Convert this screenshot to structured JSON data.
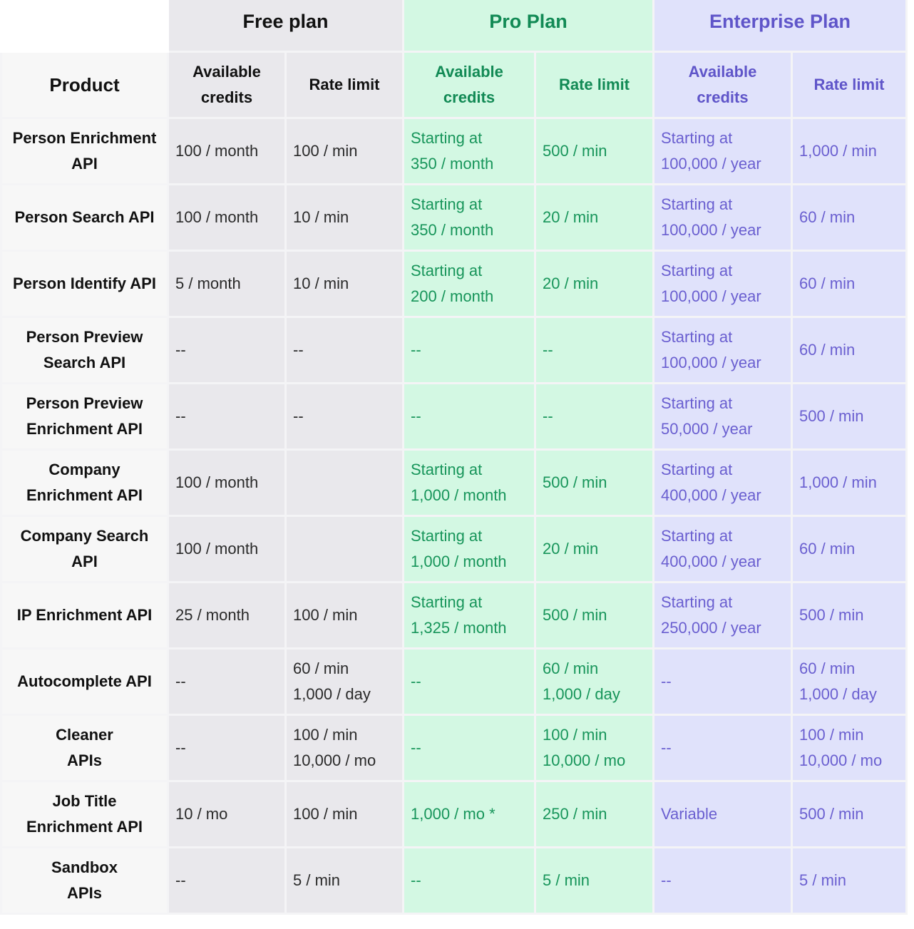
{
  "plans": {
    "free": "Free plan",
    "pro": "Pro Plan",
    "enterprise": "Enterprise Plan"
  },
  "headers": {
    "product": "Product",
    "free_credits": [
      "Available",
      "credits"
    ],
    "free_rate": "Rate limit",
    "pro_credits": [
      "Available",
      "credits"
    ],
    "pro_rate": "Rate limit",
    "ent_credits": [
      "Available",
      "credits"
    ],
    "ent_rate": "Rate limit"
  },
  "rows": [
    {
      "product": [
        "Person Enrichment",
        "API"
      ],
      "free_credits": [
        "100 / month"
      ],
      "free_rate": [
        "100 / min"
      ],
      "pro_credits": [
        "Starting at",
        "350 / month"
      ],
      "pro_rate": [
        "500 / min"
      ],
      "ent_credits": [
        "Starting at",
        "100,000 / year"
      ],
      "ent_rate": [
        "1,000 / min"
      ]
    },
    {
      "product": [
        "Person Search API"
      ],
      "free_credits": [
        "100 / month"
      ],
      "free_rate": [
        "10 / min"
      ],
      "pro_credits": [
        "Starting at",
        "350 / month"
      ],
      "pro_rate": [
        "20 / min"
      ],
      "ent_credits": [
        "Starting at",
        "100,000 / year"
      ],
      "ent_rate": [
        "60 / min"
      ]
    },
    {
      "product": [
        "Person Identify API"
      ],
      "free_credits": [
        "5 / month"
      ],
      "free_rate": [
        "10 / min"
      ],
      "pro_credits": [
        "Starting at",
        "200 / month"
      ],
      "pro_rate": [
        "20 / min"
      ],
      "ent_credits": [
        "Starting at",
        "100,000 / year"
      ],
      "ent_rate": [
        "60 / min"
      ]
    },
    {
      "product": [
        "Person Preview",
        "Search API"
      ],
      "free_credits": [
        "--"
      ],
      "free_rate": [
        "--"
      ],
      "pro_credits": [
        "--"
      ],
      "pro_rate": [
        "--"
      ],
      "ent_credits": [
        "Starting at",
        "100,000 / year"
      ],
      "ent_rate": [
        "60 / min"
      ]
    },
    {
      "product": [
        "Person Preview",
        "Enrichment API"
      ],
      "free_credits": [
        "--"
      ],
      "free_rate": [
        "--"
      ],
      "pro_credits": [
        "--"
      ],
      "pro_rate": [
        "--"
      ],
      "ent_credits": [
        "Starting at",
        "50,000 / year"
      ],
      "ent_rate": [
        "500 / min"
      ]
    },
    {
      "product": [
        "Company",
        "Enrichment API"
      ],
      "free_credits": [
        "100 / month"
      ],
      "free_rate": [],
      "pro_credits": [
        "Starting at",
        "1,000 / month"
      ],
      "pro_rate": [
        "500 / min"
      ],
      "ent_credits": [
        "Starting at",
        "400,000 / year"
      ],
      "ent_rate": [
        "1,000 / min"
      ]
    },
    {
      "product": [
        "Company Search",
        "API"
      ],
      "free_credits": [
        "100 / month"
      ],
      "free_rate": [],
      "pro_credits": [
        "Starting at",
        "1,000 / month"
      ],
      "pro_rate": [
        "20 / min"
      ],
      "ent_credits": [
        "Starting at",
        "400,000 / year"
      ],
      "ent_rate": [
        "60 / min"
      ]
    },
    {
      "product": [
        "IP Enrichment API"
      ],
      "free_credits": [
        "25 / month"
      ],
      "free_rate": [
        "100 / min"
      ],
      "pro_credits": [
        "Starting at",
        "1,325 / month"
      ],
      "pro_rate": [
        "500 / min"
      ],
      "ent_credits": [
        "Starting at",
        "250,000 / year"
      ],
      "ent_rate": [
        "500 / min"
      ]
    },
    {
      "product": [
        "Autocomplete API"
      ],
      "free_credits": [
        "--"
      ],
      "free_rate": [
        "60 / min",
        "1,000 / day"
      ],
      "pro_credits": [
        "--"
      ],
      "pro_rate": [
        "60 / min",
        "1,000 / day"
      ],
      "ent_credits": [
        "--"
      ],
      "ent_rate": [
        "60 / min",
        "1,000 / day"
      ]
    },
    {
      "product": [
        "Cleaner",
        "APIs"
      ],
      "free_credits": [
        "--"
      ],
      "free_rate": [
        "100 / min",
        "10,000 / mo"
      ],
      "pro_credits": [
        "--"
      ],
      "pro_rate": [
        "100 / min",
        "10,000 / mo"
      ],
      "ent_credits": [
        "--"
      ],
      "ent_rate": [
        "100 / min",
        "10,000 / mo"
      ]
    },
    {
      "product": [
        "Job Title",
        "Enrichment API"
      ],
      "free_credits": [
        "10 / mo"
      ],
      "free_rate": [
        "100 / min"
      ],
      "pro_credits": [
        "1,000 / mo *"
      ],
      "pro_rate": [
        "250 / min"
      ],
      "ent_credits": [
        "Variable"
      ],
      "ent_rate": [
        "500 / min"
      ]
    },
    {
      "product": [
        "Sandbox",
        "APIs"
      ],
      "free_credits": [
        "--"
      ],
      "free_rate": [
        "5 / min"
      ],
      "pro_credits": [
        "--"
      ],
      "pro_rate": [
        "5 / min"
      ],
      "ent_credits": [
        "--"
      ],
      "ent_rate": [
        "5 / min"
      ]
    }
  ]
}
